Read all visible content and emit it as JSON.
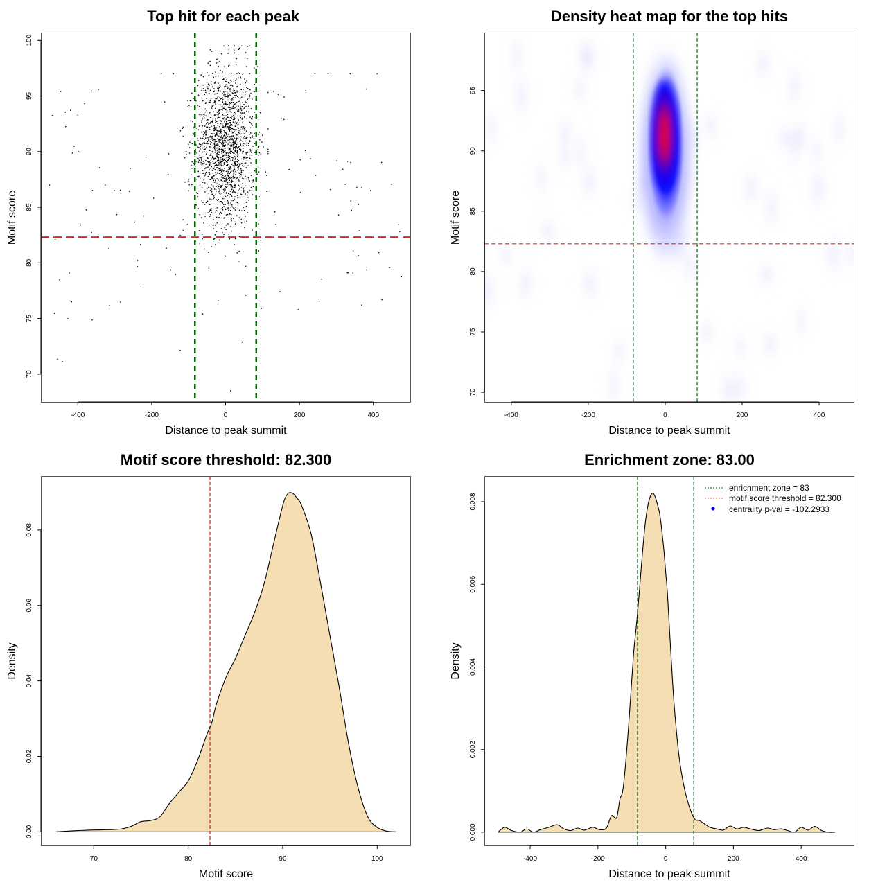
{
  "chart_data": [
    {
      "id": "scatter",
      "type": "scatter",
      "title": "Top hit for each peak",
      "xlabel": "Distance to peak summit",
      "ylabel": "Motif score",
      "xlim": [
        -500,
        500
      ],
      "ylim": [
        67.5,
        100.7
      ],
      "xticks": [
        -400,
        -200,
        0,
        200,
        400
      ],
      "yticks": [
        70,
        75,
        80,
        85,
        90,
        95,
        100
      ],
      "xtick_labels": [
        "-400",
        "-200",
        "0",
        "200",
        "400"
      ],
      "ytick_labels": [
        "70",
        "75",
        "80",
        "85",
        "90",
        "95",
        "100"
      ],
      "vlines": {
        "values": [
          -83,
          83
        ],
        "color": "#006400",
        "style": "dashed"
      },
      "hline": {
        "value": 82.3,
        "color": "#d62728",
        "style": "dashed"
      },
      "point_color": "#000000",
      "points_generation": {
        "note": "approximate reconstruction of ~2000 points",
        "central_cluster": {
          "count": 1700,
          "x_mean": 0,
          "x_sd": 40,
          "y_mean": 90.5,
          "y_sd": 3.6,
          "y_min": 74,
          "y_max": 99.5
        },
        "background": {
          "count": 140,
          "x_range": [
            -480,
            480
          ],
          "y_mean": 86,
          "y_sd": 6.5,
          "y_min": 68.5,
          "y_max": 97
        }
      }
    },
    {
      "id": "heatmap",
      "type": "heatmap",
      "title": "Density heat map for the top hits",
      "xlabel": "Distance to peak summit",
      "ylabel": "Motif score",
      "xlim": [
        -470,
        490
      ],
      "ylim": [
        69.2,
        99.8
      ],
      "xticks": [
        -400,
        -200,
        0,
        200,
        400
      ],
      "yticks": [
        70,
        75,
        80,
        85,
        90,
        95
      ],
      "xtick_labels": [
        "-400",
        "-200",
        "0",
        "200",
        "400"
      ],
      "ytick_labels": [
        "70",
        "75",
        "80",
        "85",
        "90",
        "95"
      ],
      "color_scale": [
        "#ffffff",
        "#0000ff",
        "#ff0000"
      ],
      "density_peak": {
        "x": 0,
        "y": 91,
        "x_spread": 50,
        "y_spread": 4.5
      },
      "vlines": {
        "values": [
          -83,
          83
        ],
        "color": "#006400",
        "style": "dashed"
      },
      "hline": {
        "value": 82.3,
        "color": "#d62728",
        "style": "dashed"
      }
    },
    {
      "id": "score-density",
      "type": "area",
      "title": "Motif score threshold: 82.300",
      "xlabel": "Motif score",
      "ylabel": "Density",
      "xlim": [
        64.4,
        103.5
      ],
      "ylim": [
        -0.0036,
        0.0943
      ],
      "xticks": [
        70,
        80,
        90,
        100
      ],
      "yticks": [
        0.0,
        0.02,
        0.04,
        0.06,
        0.08
      ],
      "xtick_labels": [
        "70",
        "80",
        "90",
        "100"
      ],
      "ytick_labels": [
        "0.00",
        "0.02",
        "0.04",
        "0.06",
        "0.08"
      ],
      "fill_color": "#f5deb3",
      "vline": {
        "value": 82.3,
        "color": "#d62728",
        "style": "dashed"
      },
      "x": [
        66,
        68,
        70,
        72,
        73,
        74,
        75,
        76,
        77,
        78,
        79,
        80,
        81,
        82,
        82.5,
        83,
        84,
        85,
        86,
        87,
        88,
        89,
        90,
        90.5,
        91,
        91.5,
        92,
        93,
        94,
        95,
        96,
        97,
        98,
        99,
        100,
        101,
        102
      ],
      "y": [
        0.0,
        0.0003,
        0.0005,
        0.0006,
        0.0008,
        0.0015,
        0.0027,
        0.003,
        0.004,
        0.0075,
        0.0105,
        0.0135,
        0.019,
        0.026,
        0.029,
        0.034,
        0.041,
        0.046,
        0.052,
        0.058,
        0.0655,
        0.076,
        0.0865,
        0.0895,
        0.0898,
        0.0885,
        0.0865,
        0.079,
        0.066,
        0.052,
        0.038,
        0.023,
        0.0115,
        0.004,
        0.0012,
        0.0002,
        0.0
      ]
    },
    {
      "id": "distance-density",
      "type": "area",
      "title": "Enrichment zone: 83.00",
      "xlabel": "Distance to peak summit",
      "ylabel": "Density",
      "xlim": [
        -535,
        555
      ],
      "ylim": [
        -0.00032,
        0.00862
      ],
      "xticks": [
        -400,
        -200,
        0,
        200,
        400
      ],
      "yticks": [
        0.0,
        0.002,
        0.004,
        0.006,
        0.008
      ],
      "xtick_labels": [
        "-400",
        "-200",
        "0",
        "200",
        "400"
      ],
      "ytick_labels": [
        "0.000",
        "0.002",
        "0.004",
        "0.006",
        "0.008"
      ],
      "fill_color": "#f5deb3",
      "vlines": {
        "values": [
          -83,
          83
        ],
        "color": "#006400",
        "style": "dashed"
      },
      "x": [
        -495,
        -475,
        -455,
        -430,
        -410,
        -390,
        -370,
        -345,
        -320,
        -300,
        -280,
        -260,
        -240,
        -215,
        -195,
        -175,
        -160,
        -145,
        -135,
        -125,
        -110,
        -95,
        -83,
        -60,
        -40,
        -20,
        -10,
        -5,
        0,
        5,
        15,
        25,
        40,
        60,
        83,
        100,
        115,
        130,
        150,
        170,
        190,
        210,
        230,
        250,
        275,
        300,
        320,
        340,
        360,
        380,
        400,
        420,
        440,
        460,
        480,
        500
      ],
      "y": [
        0.0,
        0.00012,
        4e-05,
        0.0,
        8e-05,
        0.0,
        6e-05,
        0.00012,
        0.00018,
        8e-05,
        4e-05,
        0.0001,
        5e-05,
        0.00012,
        6e-05,
        0.0001,
        0.0004,
        0.00035,
        0.0008,
        0.0011,
        0.0025,
        0.0043,
        0.0053,
        0.0075,
        0.0082,
        0.0078,
        0.0072,
        0.0068,
        0.0063,
        0.0058,
        0.0044,
        0.0031,
        0.0018,
        0.0009,
        0.00035,
        0.00028,
        0.0002,
        0.00012,
        8e-05,
        5e-05,
        0.00015,
        8e-05,
        0.00012,
        8e-05,
        4e-05,
        0.0001,
        6e-05,
        8e-05,
        4e-05,
        0.0,
        0.00012,
        5e-05,
        0.00014,
        4e-05,
        0.0,
        0.0
      ],
      "legend": {
        "position": "top-right",
        "items": [
          {
            "label": "enrichment zone = 83",
            "color": "#006400",
            "style": "dotted-line"
          },
          {
            "label": "motif score threshold = 82.300",
            "color": "#d62728",
            "style": "dotted-line"
          },
          {
            "label": "centrality p-val = -102.2933",
            "color": "#0000ff",
            "style": "point"
          }
        ]
      }
    }
  ]
}
